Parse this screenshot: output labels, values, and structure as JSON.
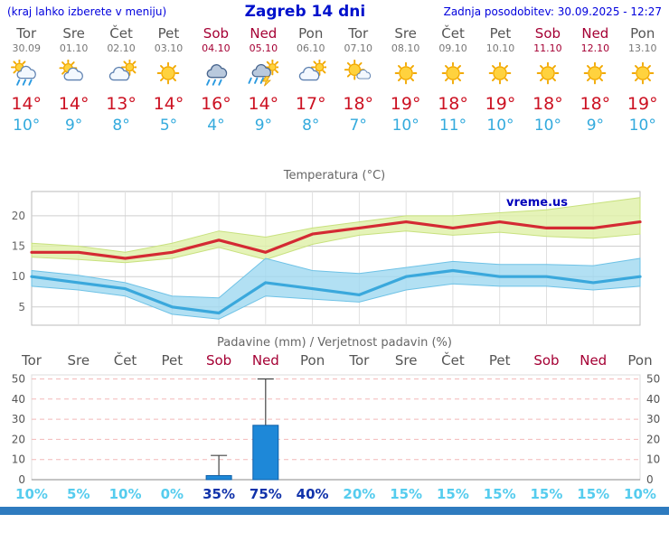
{
  "header": {
    "menu_note": "(kraj lahko izberete v meniju)",
    "title": "Zagreb 14 dni",
    "last_updated": "Zadnja posodobitev: 30.09.2025 - 12:27"
  },
  "colors": {
    "accent_blue": "#0011cc",
    "weekday": "#555555",
    "weekend": "#a50034",
    "tmax_red": "#cc1122",
    "tmin_blue": "#33aadd",
    "prob_low": "#55ccee",
    "prob_high": "#1133aa",
    "bottom_bar": "#2e7bbf",
    "watermark_blue": "#0000bb"
  },
  "days": [
    {
      "name": "Tor",
      "date": "30.09",
      "weekend": false,
      "icon": "showers",
      "tmax": "14°",
      "tmin": "10°"
    },
    {
      "name": "Sre",
      "date": "01.10",
      "weekend": false,
      "icon": "partly-cloudy",
      "tmax": "14°",
      "tmin": "9°"
    },
    {
      "name": "Čet",
      "date": "02.10",
      "weekend": false,
      "icon": "cloudy-sun",
      "tmax": "13°",
      "tmin": "8°"
    },
    {
      "name": "Pet",
      "date": "03.10",
      "weekend": false,
      "icon": "sunny",
      "tmax": "14°",
      "tmin": "5°"
    },
    {
      "name": "Sob",
      "date": "04.10",
      "weekend": true,
      "icon": "rain",
      "tmax": "16°",
      "tmin": "4°"
    },
    {
      "name": "Ned",
      "date": "05.10",
      "weekend": true,
      "icon": "storm",
      "tmax": "14°",
      "tmin": "9°"
    },
    {
      "name": "Pon",
      "date": "06.10",
      "weekend": false,
      "icon": "cloudy-sun",
      "tmax": "17°",
      "tmin": "8°"
    },
    {
      "name": "Tor",
      "date": "07.10",
      "weekend": false,
      "icon": "partly-sunny",
      "tmax": "18°",
      "tmin": "7°"
    },
    {
      "name": "Sre",
      "date": "08.10",
      "weekend": false,
      "icon": "sunny",
      "tmax": "19°",
      "tmin": "10°"
    },
    {
      "name": "Čet",
      "date": "09.10",
      "weekend": false,
      "icon": "sunny",
      "tmax": "18°",
      "tmin": "11°"
    },
    {
      "name": "Pet",
      "date": "10.10",
      "weekend": false,
      "icon": "sunny",
      "tmax": "19°",
      "tmin": "10°"
    },
    {
      "name": "Sob",
      "date": "11.10",
      "weekend": true,
      "icon": "sunny",
      "tmax": "18°",
      "tmin": "10°"
    },
    {
      "name": "Ned",
      "date": "12.10",
      "weekend": true,
      "icon": "sunny",
      "tmax": "18°",
      "tmin": "9°"
    },
    {
      "name": "Pon",
      "date": "13.10",
      "weekend": false,
      "icon": "sunny",
      "tmax": "19°",
      "tmin": "10°"
    }
  ],
  "chart_data": [
    {
      "type": "line",
      "title": "Temperatura (°C)",
      "x_labels": [
        "Tor",
        "Sre",
        "Čet",
        "Pet",
        "Sob",
        "Ned",
        "Pon",
        "Tor",
        "Sre",
        "Čet",
        "Pet",
        "Sob",
        "Ned",
        "Pon"
      ],
      "ylim": [
        2,
        24
      ],
      "yticks": [
        5,
        10,
        15,
        20
      ],
      "grid": true,
      "legend": "none",
      "watermark": "vreme.us",
      "series": [
        {
          "name": "max temperature",
          "color": "#d42a33",
          "values": [
            14,
            14,
            13,
            14,
            16,
            14,
            17,
            18,
            19,
            18,
            19,
            18,
            18,
            19
          ]
        },
        {
          "name": "min temperature",
          "color": "#3aa8dc",
          "values": [
            10,
            9,
            8,
            5,
            4,
            9,
            8,
            7,
            10,
            11,
            10,
            10,
            9,
            10
          ]
        }
      ],
      "bands": [
        {
          "name": "max-range",
          "fill": "#dff0a6",
          "stroke": "#c8e17e",
          "upper": [
            15.5,
            15,
            14,
            15.5,
            17.5,
            16.5,
            18,
            19,
            20,
            20,
            20.5,
            21,
            22,
            23
          ],
          "lower": [
            13.2,
            12.8,
            12.3,
            13,
            14.8,
            12.8,
            15.3,
            16.8,
            17.5,
            16.8,
            17.3,
            16.6,
            16.3,
            17
          ]
        },
        {
          "name": "min-range",
          "fill": "#9fd8f0",
          "stroke": "#6ec2e6",
          "upper": [
            11,
            10.2,
            9,
            6.8,
            6.5,
            13,
            11,
            10.5,
            11.5,
            12.5,
            12,
            12,
            11.8,
            13
          ],
          "lower": [
            8.4,
            7.8,
            6.8,
            3.8,
            3,
            6.8,
            6.3,
            5.8,
            7.8,
            8.8,
            8.4,
            8.4,
            7.8,
            8.4
          ]
        }
      ]
    },
    {
      "type": "bar",
      "title": "Padavine (mm) / Verjetnost padavin (%)",
      "categories": [
        "Tor",
        "Sre",
        "Čet",
        "Pet",
        "Sob",
        "Ned",
        "Pon",
        "Tor",
        "Sre",
        "Čet",
        "Pet",
        "Sob",
        "Ned",
        "Pon"
      ],
      "values_mm": [
        0,
        0,
        0,
        0,
        2,
        27,
        0,
        0,
        0,
        0,
        0,
        0,
        0,
        0
      ],
      "whisker_max_mm": [
        0,
        0,
        0,
        0,
        12,
        50,
        0,
        0,
        0,
        0,
        0,
        0,
        0,
        0
      ],
      "probabilities_pct": [
        10,
        5,
        10,
        0,
        35,
        75,
        40,
        20,
        15,
        15,
        15,
        15,
        15,
        10
      ],
      "prob_labels": [
        "10%",
        "5%",
        "10%",
        "0%",
        "35%",
        "75%",
        "40%",
        "20%",
        "15%",
        "15%",
        "15%",
        "15%",
        "15%",
        "10%"
      ],
      "prob_highlight": [
        false,
        false,
        false,
        false,
        true,
        true,
        true,
        false,
        false,
        false,
        false,
        false,
        false,
        false
      ],
      "ylim": [
        0,
        52
      ],
      "yticks": [
        0,
        10,
        20,
        30,
        40,
        50
      ],
      "grid": true,
      "bar_color": "#1e88d8"
    }
  ]
}
